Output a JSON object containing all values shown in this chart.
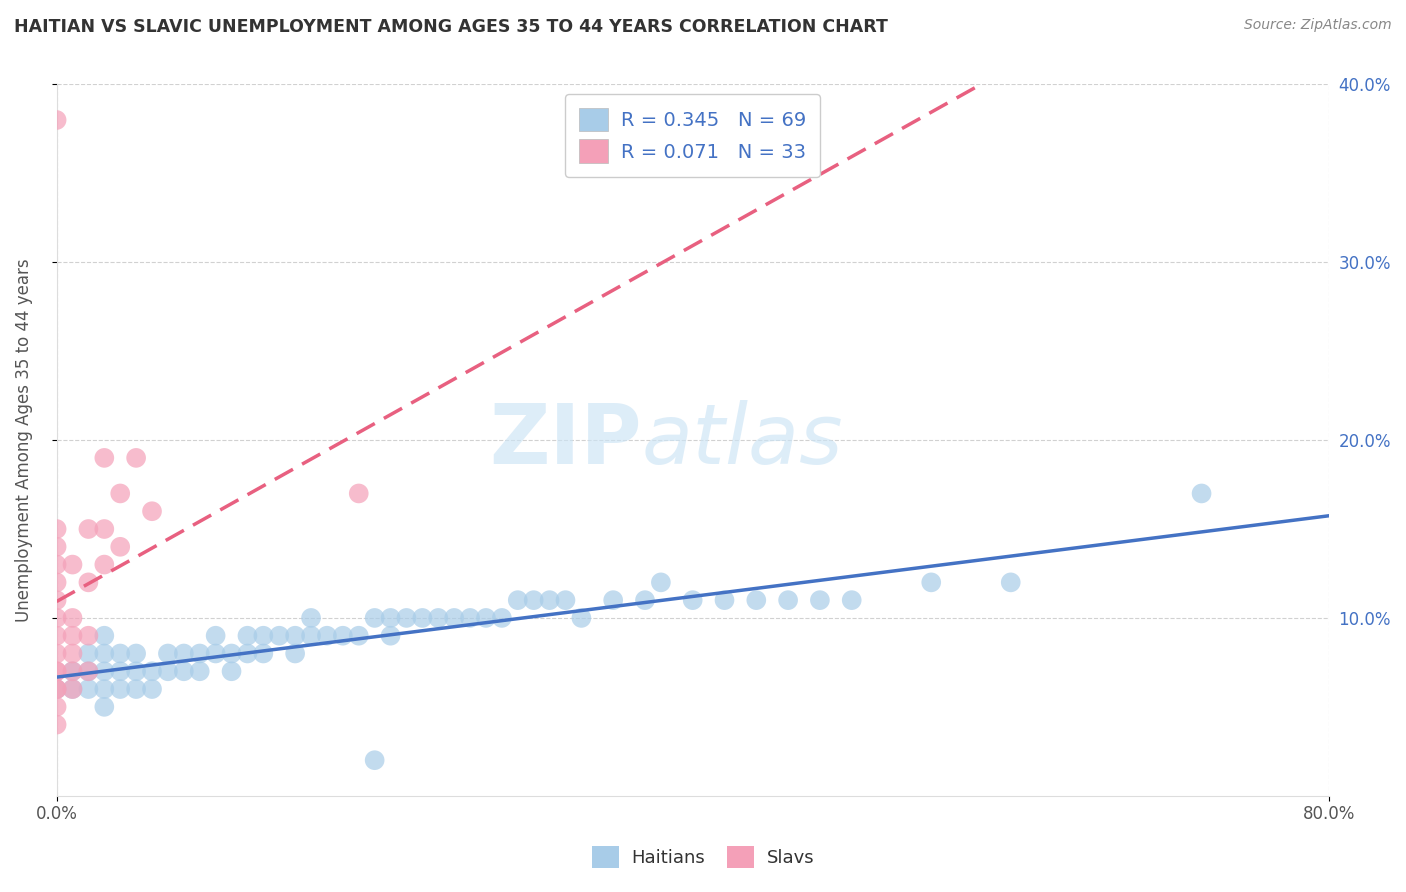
{
  "title": "HAITIAN VS SLAVIC UNEMPLOYMENT AMONG AGES 35 TO 44 YEARS CORRELATION CHART",
  "source": "Source: ZipAtlas.com",
  "ylabel": "Unemployment Among Ages 35 to 44 years",
  "xlim": [
    0.0,
    0.8
  ],
  "ylim": [
    0.0,
    0.4
  ],
  "xtick_positions": [
    0.0,
    0.8
  ],
  "xtick_labels": [
    "0.0%",
    "80.0%"
  ],
  "ytick_positions": [
    0.1,
    0.2,
    0.3,
    0.4
  ],
  "ytick_labels": [
    "10.0%",
    "20.0%",
    "30.0%",
    "40.0%"
  ],
  "background_color": "#ffffff",
  "grid_color": "#cccccc",
  "series": [
    {
      "name": "Haitians",
      "R": 0.345,
      "N": 69,
      "color": "#a8cce8",
      "line_color": "#4472c4",
      "line_style": "solid",
      "x": [
        0.0,
        0.01,
        0.01,
        0.02,
        0.02,
        0.02,
        0.03,
        0.03,
        0.03,
        0.03,
        0.03,
        0.04,
        0.04,
        0.04,
        0.05,
        0.05,
        0.05,
        0.06,
        0.06,
        0.07,
        0.07,
        0.08,
        0.08,
        0.09,
        0.09,
        0.1,
        0.1,
        0.11,
        0.11,
        0.12,
        0.12,
        0.13,
        0.13,
        0.14,
        0.15,
        0.15,
        0.16,
        0.16,
        0.17,
        0.18,
        0.19,
        0.2,
        0.2,
        0.21,
        0.21,
        0.22,
        0.23,
        0.24,
        0.25,
        0.26,
        0.27,
        0.28,
        0.29,
        0.3,
        0.31,
        0.32,
        0.33,
        0.35,
        0.37,
        0.38,
        0.4,
        0.42,
        0.44,
        0.46,
        0.48,
        0.5,
        0.55,
        0.6,
        0.72
      ],
      "y": [
        0.06,
        0.06,
        0.07,
        0.06,
        0.07,
        0.08,
        0.05,
        0.06,
        0.07,
        0.08,
        0.09,
        0.06,
        0.07,
        0.08,
        0.06,
        0.07,
        0.08,
        0.06,
        0.07,
        0.07,
        0.08,
        0.07,
        0.08,
        0.07,
        0.08,
        0.08,
        0.09,
        0.07,
        0.08,
        0.08,
        0.09,
        0.08,
        0.09,
        0.09,
        0.08,
        0.09,
        0.09,
        0.1,
        0.09,
        0.09,
        0.09,
        0.02,
        0.1,
        0.09,
        0.1,
        0.1,
        0.1,
        0.1,
        0.1,
        0.1,
        0.1,
        0.1,
        0.11,
        0.11,
        0.11,
        0.11,
        0.1,
        0.11,
        0.11,
        0.12,
        0.11,
        0.11,
        0.11,
        0.11,
        0.11,
        0.11,
        0.12,
        0.12,
        0.17
      ]
    },
    {
      "name": "Slavs",
      "R": 0.071,
      "N": 33,
      "color": "#f4a0b8",
      "line_color": "#e86080",
      "line_style": "dashed",
      "x": [
        0.0,
        0.0,
        0.0,
        0.0,
        0.0,
        0.0,
        0.0,
        0.0,
        0.0,
        0.0,
        0.0,
        0.0,
        0.0,
        0.0,
        0.0,
        0.01,
        0.01,
        0.01,
        0.01,
        0.01,
        0.01,
        0.02,
        0.02,
        0.02,
        0.02,
        0.03,
        0.03,
        0.03,
        0.04,
        0.04,
        0.05,
        0.06,
        0.19
      ],
      "y": [
        0.04,
        0.05,
        0.06,
        0.06,
        0.07,
        0.07,
        0.08,
        0.09,
        0.1,
        0.11,
        0.12,
        0.13,
        0.14,
        0.15,
        0.38,
        0.06,
        0.07,
        0.08,
        0.09,
        0.1,
        0.13,
        0.07,
        0.09,
        0.12,
        0.15,
        0.13,
        0.15,
        0.19,
        0.14,
        0.17,
        0.19,
        0.16,
        0.17
      ]
    }
  ]
}
